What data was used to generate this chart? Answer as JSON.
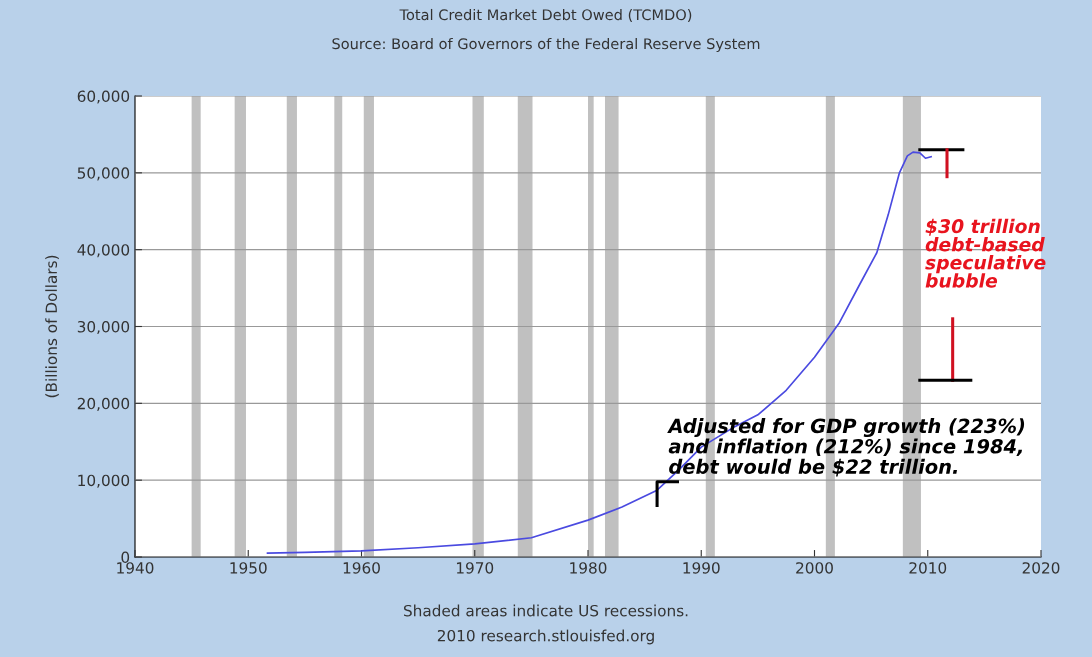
{
  "chart_data": {
    "type": "line",
    "title": "Total Credit Market Debt Owed (TCMDO)",
    "subtitle": "Source: Board of Governors of the Federal Reserve System",
    "ylabel": "(Billions of Dollars)",
    "x": [
      1951.7,
      1955,
      1960,
      1965,
      1970,
      1975,
      1980,
      1983,
      1986.1,
      1988,
      1990,
      1993,
      1995,
      1997.5,
      2000,
      2002.2,
      2004,
      2005.5,
      2006.5,
      2007.5,
      2008.2,
      2008.7,
      2009.3,
      2009.8,
      2010.3
    ],
    "series": [
      {
        "color": "#4a4ae0",
        "values": [
          500,
          600,
          800,
          1200,
          1700,
          2500,
          4800,
          6500,
          8700,
          11300,
          14300,
          17000,
          18500,
          21700,
          26000,
          30500,
          35500,
          39600,
          44500,
          50000,
          52200,
          52700,
          52600,
          51900,
          52100
        ]
      }
    ],
    "xlim": [
      1940,
      2020
    ],
    "xticks": [
      1940,
      1950,
      1960,
      1970,
      1980,
      1990,
      2000,
      2010,
      2020
    ],
    "ylim": [
      0,
      60000
    ],
    "yticks": [
      {
        "value": 0,
        "label": "0"
      },
      {
        "value": 10000,
        "label": "10,000"
      },
      {
        "value": 20000,
        "label": "20,000"
      },
      {
        "value": 30000,
        "label": "30,000"
      },
      {
        "value": 40000,
        "label": "40,000"
      },
      {
        "value": 50000,
        "label": "50,000"
      },
      {
        "value": 60000,
        "label": "60,000"
      }
    ],
    "grid": "y",
    "line_style": "solid",
    "marker": "none",
    "bands": [
      {
        "axis": "x",
        "from": 1945.0,
        "to": 1945.8,
        "color": "#c0c0c0"
      },
      {
        "axis": "x",
        "from": 1948.8,
        "to": 1949.8,
        "color": "#c0c0c0"
      },
      {
        "axis": "x",
        "from": 1953.4,
        "to": 1954.3,
        "color": "#c0c0c0"
      },
      {
        "axis": "x",
        "from": 1957.6,
        "to": 1958.3,
        "color": "#c0c0c0"
      },
      {
        "axis": "x",
        "from": 1960.2,
        "to": 1961.1,
        "color": "#c0c0c0"
      },
      {
        "axis": "x",
        "from": 1969.8,
        "to": 1970.8,
        "color": "#c0c0c0"
      },
      {
        "axis": "x",
        "from": 1973.8,
        "to": 1975.1,
        "color": "#c0c0c0"
      },
      {
        "axis": "x",
        "from": 1980.0,
        "to": 1980.5,
        "color": "#c0c0c0"
      },
      {
        "axis": "x",
        "from": 1981.5,
        "to": 1982.7,
        "color": "#c0c0c0"
      },
      {
        "axis": "x",
        "from": 1990.4,
        "to": 1991.2,
        "color": "#c0c0c0"
      },
      {
        "axis": "x",
        "from": 2001.0,
        "to": 2001.8,
        "color": "#c0c0c0"
      },
      {
        "axis": "x",
        "from": 2007.8,
        "to": 2009.4,
        "color": "#c0c0c0"
      }
    ],
    "annotations": [
      "$30 trillion\ndebt-based\nspeculative\nbubble",
      {
        "text": "Adjusted for GDP growth (223%)\nand inflation (212%) since 1984,\ndebt would be $22 trillion.",
        "x": 1986.1,
        "y": 8700
      },
      "Shaded areas indicate US recessions.",
      "2010 research.stlouisfed.org"
    ]
  }
}
